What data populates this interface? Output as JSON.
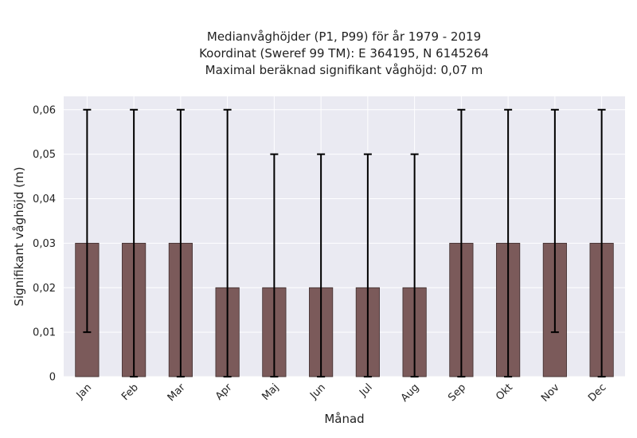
{
  "chart_data": {
    "type": "bar",
    "title_lines": [
      "Medianvåghöjder (P1, P99) för år 1979 - 2019",
      "Koordinat (Sweref 99 TM): E 364195, N 6145264",
      "Maximal beräknad signifikant våghöjd: 0,07 m"
    ],
    "xlabel": "Månad",
    "ylabel": "Signifikant våghöjd (m)",
    "categories": [
      "Jan",
      "Feb",
      "Mar",
      "Apr",
      "Maj",
      "Jun",
      "Jul",
      "Aug",
      "Sep",
      "Okt",
      "Nov",
      "Dec"
    ],
    "values": [
      0.03,
      0.03,
      0.03,
      0.02,
      0.02,
      0.02,
      0.02,
      0.02,
      0.03,
      0.03,
      0.03,
      0.03
    ],
    "error_low": [
      0.01,
      0.0,
      0.0,
      0.0,
      0.0,
      0.0,
      0.0,
      0.0,
      0.0,
      0.0,
      0.01,
      0.0
    ],
    "error_high": [
      0.06,
      0.06,
      0.06,
      0.06,
      0.05,
      0.05,
      0.05,
      0.05,
      0.06,
      0.06,
      0.06,
      0.06
    ],
    "ylim": [
      0,
      0.063
    ],
    "yticks": [
      0,
      0.01,
      0.02,
      0.03,
      0.04,
      0.05,
      0.06
    ],
    "ytick_labels": [
      "0",
      "0,01",
      "0,02",
      "0,03",
      "0,04",
      "0,05",
      "0,06"
    ],
    "grid": true,
    "colors": {
      "plot_background": "#eaeaf2",
      "bar_fill": "#7b5a5a",
      "bar_edge": "#3f2e2e",
      "error_bar": "#000000",
      "grid": "#ffffff"
    }
  }
}
